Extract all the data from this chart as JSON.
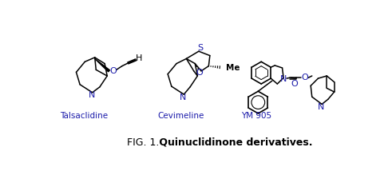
{
  "title_prefix": "FIG. 1.",
  "title_bold": " Quinuclidinone derivatives.",
  "label1": "Talsaclidine",
  "label2": "Cevimeline",
  "label3": "YM 905",
  "bg_color": "#ffffff",
  "line_color": "#000000",
  "atom_color": "#1a1aaa",
  "fig_width": 4.91,
  "fig_height": 2.14,
  "dpi": 100
}
